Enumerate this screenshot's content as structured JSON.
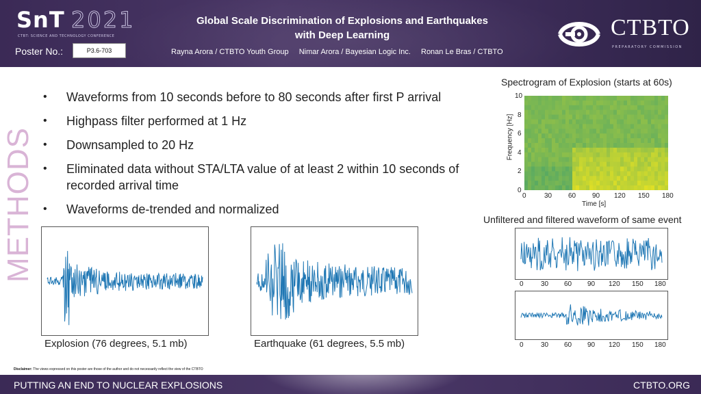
{
  "header": {
    "snt_logo": {
      "main": "SnT",
      "year": "2021",
      "subtitle": "CTBT: SCIENCE AND TECHNOLOGY CONFERENCE"
    },
    "poster_no_label": "Poster No.:",
    "poster_no": "P3.6-703",
    "title_line1": "Global Scale Discrimination of Explosions and Earthquakes",
    "title_line2": "with Deep Learning",
    "authors": [
      "Rayna Arora / CTBTO Youth Group",
      "Nimar Arora / Bayesian Logic Inc.",
      "Ronan Le Bras / CTBTO"
    ],
    "ctbto_logo": {
      "name": "CTBTO",
      "subtitle": "PREPARATORY COMMISSION"
    }
  },
  "side_title": "METHODS",
  "bullets": [
    "Waveforms from 10 seconds before to 80 seconds after first P arrival",
    "Highpass filter performed at 1 Hz",
    "Downsampled to 20 Hz",
    "Eliminated data without STA/LTA value of at least 2 within 10 seconds of recorded arrival time",
    "Waveforms de-trended and normalized"
  ],
  "captions": {
    "explosion": "Explosion (76 degrees, 5.1 mb)",
    "earthquake": "Earthquake (61 degrees, 5.5 mb)"
  },
  "spectrogram": {
    "title": "Spectrogram of Explosion (starts at 60s)",
    "ylabel": "Frequency [Hz]",
    "xlabel": "Time [s]",
    "yticks": [
      "10",
      "8",
      "6",
      "4",
      "2",
      "0"
    ],
    "xticks": [
      "0",
      "30",
      "60",
      "90",
      "120",
      "150",
      "180"
    ]
  },
  "filtered": {
    "title": "Unfiltered and filtered waveform of same event",
    "xticks": [
      "0",
      "30",
      "60",
      "90",
      "120",
      "150",
      "180"
    ]
  },
  "colors": {
    "wave": "#1f77b4",
    "header_bg": "#3b2a56",
    "side_title": "#d9b4d6"
  },
  "footer": {
    "disclaimer_label": "Disclaimer:",
    "disclaimer_text": "The views expressed on this poster are those of the author and do not necessarily reflect the view of the CTBTO",
    "left": "PUTTING AN END TO NUCLEAR EXPLOSIONS",
    "right": "CTBTO.ORG"
  }
}
